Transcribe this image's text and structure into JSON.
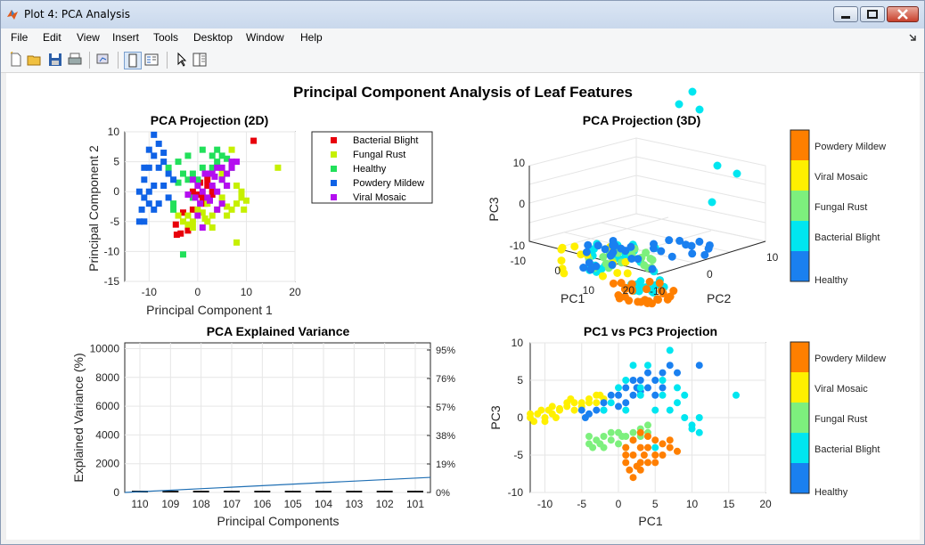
{
  "window": {
    "title": "Plot 4: PCA Analysis"
  },
  "menu": [
    "File",
    "Edit",
    "View",
    "Insert",
    "Tools",
    "Desktop",
    "Window",
    "Help"
  ],
  "toolbar": {
    "icons": [
      "new-file-icon",
      "open-folder-icon",
      "save-icon",
      "print-icon",
      "link-plot-icon",
      "dock-figure-icon",
      "insert-legend-icon",
      "pointer-icon",
      "property-inspector-icon"
    ]
  },
  "figure": {
    "suptitle": "Principal Component Analysis of Leaf Features"
  },
  "colors": {
    "bacterial_blight_2d": "#e8000b",
    "fungal_rust_2d": "#c6f000",
    "healthy_2d": "#21e05a",
    "powdery_mildew_2d": "#0f62e6",
    "viral_mosaic_2d": "#b40ef0",
    "cb_healthy": "#1a80f0",
    "cb_bacterial": "#00e6f0",
    "cb_fungal": "#7df07d",
    "cb_viral": "#fff000",
    "cb_powdery": "#ff7f00"
  },
  "chart_data": [
    {
      "type": "scatter",
      "title": "PCA Projection (2D)",
      "xlabel": "Principal Component 1",
      "ylabel": "Principal Component 2",
      "xlim": [
        -15,
        20
      ],
      "ylim": [
        -15,
        10
      ],
      "xticks": [
        -10,
        0,
        10,
        20
      ],
      "yticks": [
        -15,
        -10,
        -5,
        0,
        5,
        10
      ],
      "grid": true,
      "legend_position": "outside-right",
      "series": [
        {
          "name": "Bacterial Blight",
          "color": "#e8000b",
          "points": [
            [
              -4.5,
              -5.5
            ],
            [
              -3.5,
              -7
            ],
            [
              -2,
              -6.5
            ],
            [
              -3,
              -3.5
            ],
            [
              -1,
              0
            ],
            [
              0,
              -0.5
            ],
            [
              1,
              -1
            ],
            [
              2,
              2
            ],
            [
              3,
              -0.5
            ],
            [
              2,
              1
            ],
            [
              1.5,
              -2
            ],
            [
              11.5,
              8.5
            ],
            [
              -1,
              -3
            ],
            [
              0.5,
              1.5
            ],
            [
              3,
              0.5
            ],
            [
              -4.3,
              -7.2
            ]
          ]
        },
        {
          "name": "Fungal Rust",
          "color": "#c6f000",
          "points": [
            [
              16.5,
              4
            ],
            [
              8,
              -8.5
            ],
            [
              8,
              -2
            ],
            [
              9,
              -1
            ],
            [
              7,
              -3
            ],
            [
              6,
              -2.5
            ],
            [
              4,
              -3
            ],
            [
              5,
              -1
            ],
            [
              3,
              -4
            ],
            [
              2,
              -5
            ],
            [
              -3,
              -5
            ],
            [
              -2,
              -4
            ],
            [
              -1,
              -5
            ],
            [
              0,
              -3
            ],
            [
              1,
              -3.5
            ],
            [
              9.5,
              -3
            ],
            [
              10,
              -1.5
            ],
            [
              -1,
              -6
            ],
            [
              -2,
              -5.5
            ],
            [
              2,
              -2
            ],
            [
              3,
              -6
            ],
            [
              8,
              1
            ],
            [
              7,
              7
            ],
            [
              5,
              3
            ],
            [
              9,
              0
            ],
            [
              -4,
              -4
            ],
            [
              1.5,
              -4.5
            ],
            [
              6,
              -4
            ]
          ]
        },
        {
          "name": "Healthy",
          "color": "#21e05a",
          "points": [
            [
              -3,
              -10.5
            ],
            [
              -5,
              -2
            ],
            [
              -4,
              1.5
            ],
            [
              -3,
              3
            ],
            [
              -2,
              2
            ],
            [
              -1,
              3
            ],
            [
              0,
              2
            ],
            [
              1,
              4
            ],
            [
              2,
              3
            ],
            [
              3,
              4
            ],
            [
              4,
              5
            ],
            [
              5,
              2
            ],
            [
              6,
              1
            ],
            [
              7,
              4
            ],
            [
              -6,
              4
            ],
            [
              -2,
              6
            ],
            [
              1,
              7
            ],
            [
              4,
              7
            ],
            [
              -1,
              -1
            ],
            [
              6,
              5.5
            ],
            [
              5,
              6
            ],
            [
              3,
              6
            ],
            [
              -4,
              5
            ],
            [
              -5,
              -3
            ]
          ]
        },
        {
          "name": "Powdery Mildew",
          "color": "#0f62e6",
          "points": [
            [
              -12,
              -5
            ],
            [
              -11.5,
              -3
            ],
            [
              -11,
              -1
            ],
            [
              -11,
              2
            ],
            [
              -10,
              0
            ],
            [
              -10,
              4
            ],
            [
              -9,
              6
            ],
            [
              -8,
              8
            ],
            [
              -7,
              5
            ],
            [
              -6,
              3
            ],
            [
              -9,
              1
            ],
            [
              -8,
              -2
            ],
            [
              -10,
              -2
            ],
            [
              -12,
              0
            ],
            [
              -9,
              9.5
            ],
            [
              -7,
              6.5
            ],
            [
              -11,
              -5
            ],
            [
              -8,
              4
            ],
            [
              -7,
              1
            ],
            [
              -6,
              -1
            ],
            [
              -10,
              7
            ],
            [
              -11,
              4
            ],
            [
              -9,
              -3
            ],
            [
              -5,
              2
            ]
          ]
        },
        {
          "name": "Viral Mosaic",
          "color": "#b40ef0",
          "points": [
            [
              -0.5,
              -1
            ],
            [
              0,
              1
            ],
            [
              1,
              0
            ],
            [
              2,
              -1
            ],
            [
              3,
              1
            ],
            [
              4,
              0
            ],
            [
              5,
              2
            ],
            [
              6,
              3
            ],
            [
              7,
              5
            ],
            [
              2,
              3
            ],
            [
              4,
              4
            ],
            [
              5,
              -2
            ],
            [
              -1,
              2
            ],
            [
              0.5,
              -2
            ],
            [
              3.5,
              2.5
            ],
            [
              6,
              1
            ],
            [
              -2,
              -0.5
            ],
            [
              1,
              -6
            ],
            [
              7,
              4
            ],
            [
              8,
              5
            ],
            [
              1.5,
              3
            ],
            [
              4,
              -3
            ],
            [
              2.5,
              -1.5
            ],
            [
              0,
              -4
            ],
            [
              5,
              4
            ],
            [
              3,
              3
            ]
          ]
        }
      ]
    },
    {
      "type": "scatter",
      "title": "PCA Projection (3D)",
      "xlabel": "PC1",
      "ylabel": "PC2",
      "zlabel": "PC3",
      "xticks": [
        -10,
        0,
        10,
        20
      ],
      "yticks": [
        -10,
        0,
        10
      ],
      "zticks": [
        -10,
        0,
        10
      ],
      "grid": true,
      "colorbar": [
        "Healthy",
        "Bacterial Blight",
        "Fungal Rust",
        "Viral Mosaic",
        "Powdery Mildew"
      ]
    },
    {
      "type": "bar",
      "title": "PCA Explained Variance",
      "xlabel": "Principal Components",
      "ylabel": "Explained Variance (%)",
      "categories": [
        "110",
        "109",
        "108",
        "107",
        "106",
        "105",
        "104",
        "103",
        "102",
        "101"
      ],
      "ylim": [
        0,
        10400
      ],
      "yticks": [
        0,
        2000,
        4000,
        6000,
        8000,
        10000
      ],
      "y2ticks": [
        "0%",
        "19%",
        "38%",
        "57%",
        "76%",
        "95%"
      ],
      "cumulative_line": [
        0,
        1050
      ],
      "grid": true
    },
    {
      "type": "scatter",
      "title": "PC1 vs PC3 Projection",
      "xlabel": "PC1",
      "ylabel": "PC3",
      "xlim": [
        -12,
        20
      ],
      "ylim": [
        -10,
        10
      ],
      "xticks": [
        -10,
        -5,
        0,
        5,
        10,
        15,
        20
      ],
      "yticks": [
        -10,
        -5,
        0,
        5,
        10
      ],
      "grid": true,
      "colorbar": [
        "Healthy",
        "Bacterial Blight",
        "Fungal Rust",
        "Viral Mosaic",
        "Powdery Mildew"
      ],
      "series": [
        {
          "name": "Viral Mosaic",
          "color": "#fff000",
          "points": [
            [
              -12,
              0
            ],
            [
              -11,
              0.5
            ],
            [
              -10,
              0
            ],
            [
              -9.5,
              1
            ],
            [
              -9,
              0.5
            ],
            [
              -8,
              1
            ],
            [
              -7,
              1.5
            ],
            [
              -6,
              2
            ],
            [
              -5,
              2
            ],
            [
              -4,
              2.5
            ],
            [
              -3,
              3
            ],
            [
              -2,
              2.5
            ],
            [
              -11.5,
              -0.5
            ],
            [
              -10.5,
              1
            ],
            [
              -9,
              1.5
            ],
            [
              -8.5,
              0
            ],
            [
              -7,
              2
            ],
            [
              -6,
              1
            ],
            [
              -5,
              1.5
            ],
            [
              -4,
              2
            ],
            [
              -3,
              2
            ],
            [
              -2.5,
              3
            ],
            [
              -12,
              0.5
            ],
            [
              -10,
              -0.5
            ],
            [
              -8,
              1.2
            ],
            [
              -6.5,
              2.5
            ]
          ]
        },
        {
          "name": "Healthy",
          "color": "#1a80f0",
          "points": [
            [
              -5,
              1
            ],
            [
              -4,
              0.5
            ],
            [
              -3,
              1
            ],
            [
              -2,
              2
            ],
            [
              -1,
              3
            ],
            [
              0,
              3
            ],
            [
              1,
              4
            ],
            [
              2,
              3
            ],
            [
              3,
              5
            ],
            [
              4,
              4
            ],
            [
              5,
              5
            ],
            [
              6,
              6
            ],
            [
              7,
              7
            ],
            [
              8,
              6
            ],
            [
              -4.5,
              0
            ],
            [
              11,
              7
            ],
            [
              6,
              4
            ],
            [
              5,
              3
            ],
            [
              3,
              3.5
            ],
            [
              2,
              5
            ],
            [
              1,
              2
            ],
            [
              -2,
              1
            ],
            [
              0,
              1.5
            ],
            [
              4,
              6
            ],
            [
              2.5,
              4
            ]
          ]
        },
        {
          "name": "Bacterial Blight",
          "color": "#00e6f0",
          "points": [
            [
              -2,
              1
            ],
            [
              0,
              4
            ],
            [
              1,
              5
            ],
            [
              3,
              4
            ],
            [
              5,
              1
            ],
            [
              6,
              3
            ],
            [
              7,
              9
            ],
            [
              8,
              4
            ],
            [
              9,
              0
            ],
            [
              10,
              -1
            ],
            [
              11,
              -2
            ],
            [
              16,
              3
            ],
            [
              2,
              7
            ],
            [
              4,
              7
            ],
            [
              6,
              5
            ],
            [
              8,
              2
            ],
            [
              10,
              -1.5
            ],
            [
              7,
              1
            ],
            [
              9,
              3
            ],
            [
              -1,
              2
            ],
            [
              5,
              -4
            ],
            [
              1,
              1
            ],
            [
              11,
              0
            ],
            [
              3,
              3
            ]
          ]
        },
        {
          "name": "Fungal Rust",
          "color": "#7df07d",
          "points": [
            [
              -4,
              -3.5
            ],
            [
              -3,
              -3
            ],
            [
              -2,
              -2.5
            ],
            [
              -1,
              -3
            ],
            [
              0,
              -2
            ],
            [
              1,
              -2.5
            ],
            [
              2,
              -2
            ],
            [
              3,
              -1.5
            ],
            [
              4,
              -1
            ],
            [
              -3.5,
              -4
            ],
            [
              -2,
              -4
            ],
            [
              0,
              -3.5
            ],
            [
              1,
              -4
            ],
            [
              -1,
              -2
            ],
            [
              2,
              -3
            ],
            [
              3,
              -2.5
            ],
            [
              -4,
              -2.5
            ],
            [
              0.5,
              -2.5
            ],
            [
              -2.5,
              -3.5
            ],
            [
              4,
              -2
            ]
          ]
        },
        {
          "name": "Powdery Mildew",
          "color": "#ff7f00",
          "points": [
            [
              1,
              -4
            ],
            [
              2,
              -5
            ],
            [
              3,
              -6
            ],
            [
              1.5,
              -7
            ],
            [
              2.5,
              -6.5
            ],
            [
              3.5,
              -5
            ],
            [
              4,
              -4
            ],
            [
              5,
              -3
            ],
            [
              6,
              -3.5
            ],
            [
              7,
              -4
            ],
            [
              8,
              -4.5
            ],
            [
              4,
              -6
            ],
            [
              5,
              -5
            ],
            [
              1,
              -5
            ],
            [
              2,
              -8
            ],
            [
              3,
              -7
            ],
            [
              6,
              -5
            ],
            [
              2,
              -3
            ],
            [
              3,
              -2
            ],
            [
              4,
              -2.5
            ],
            [
              5,
              -6
            ],
            [
              7,
              -3
            ],
            [
              1,
              -6
            ],
            [
              3,
              -4
            ]
          ]
        }
      ]
    }
  ]
}
